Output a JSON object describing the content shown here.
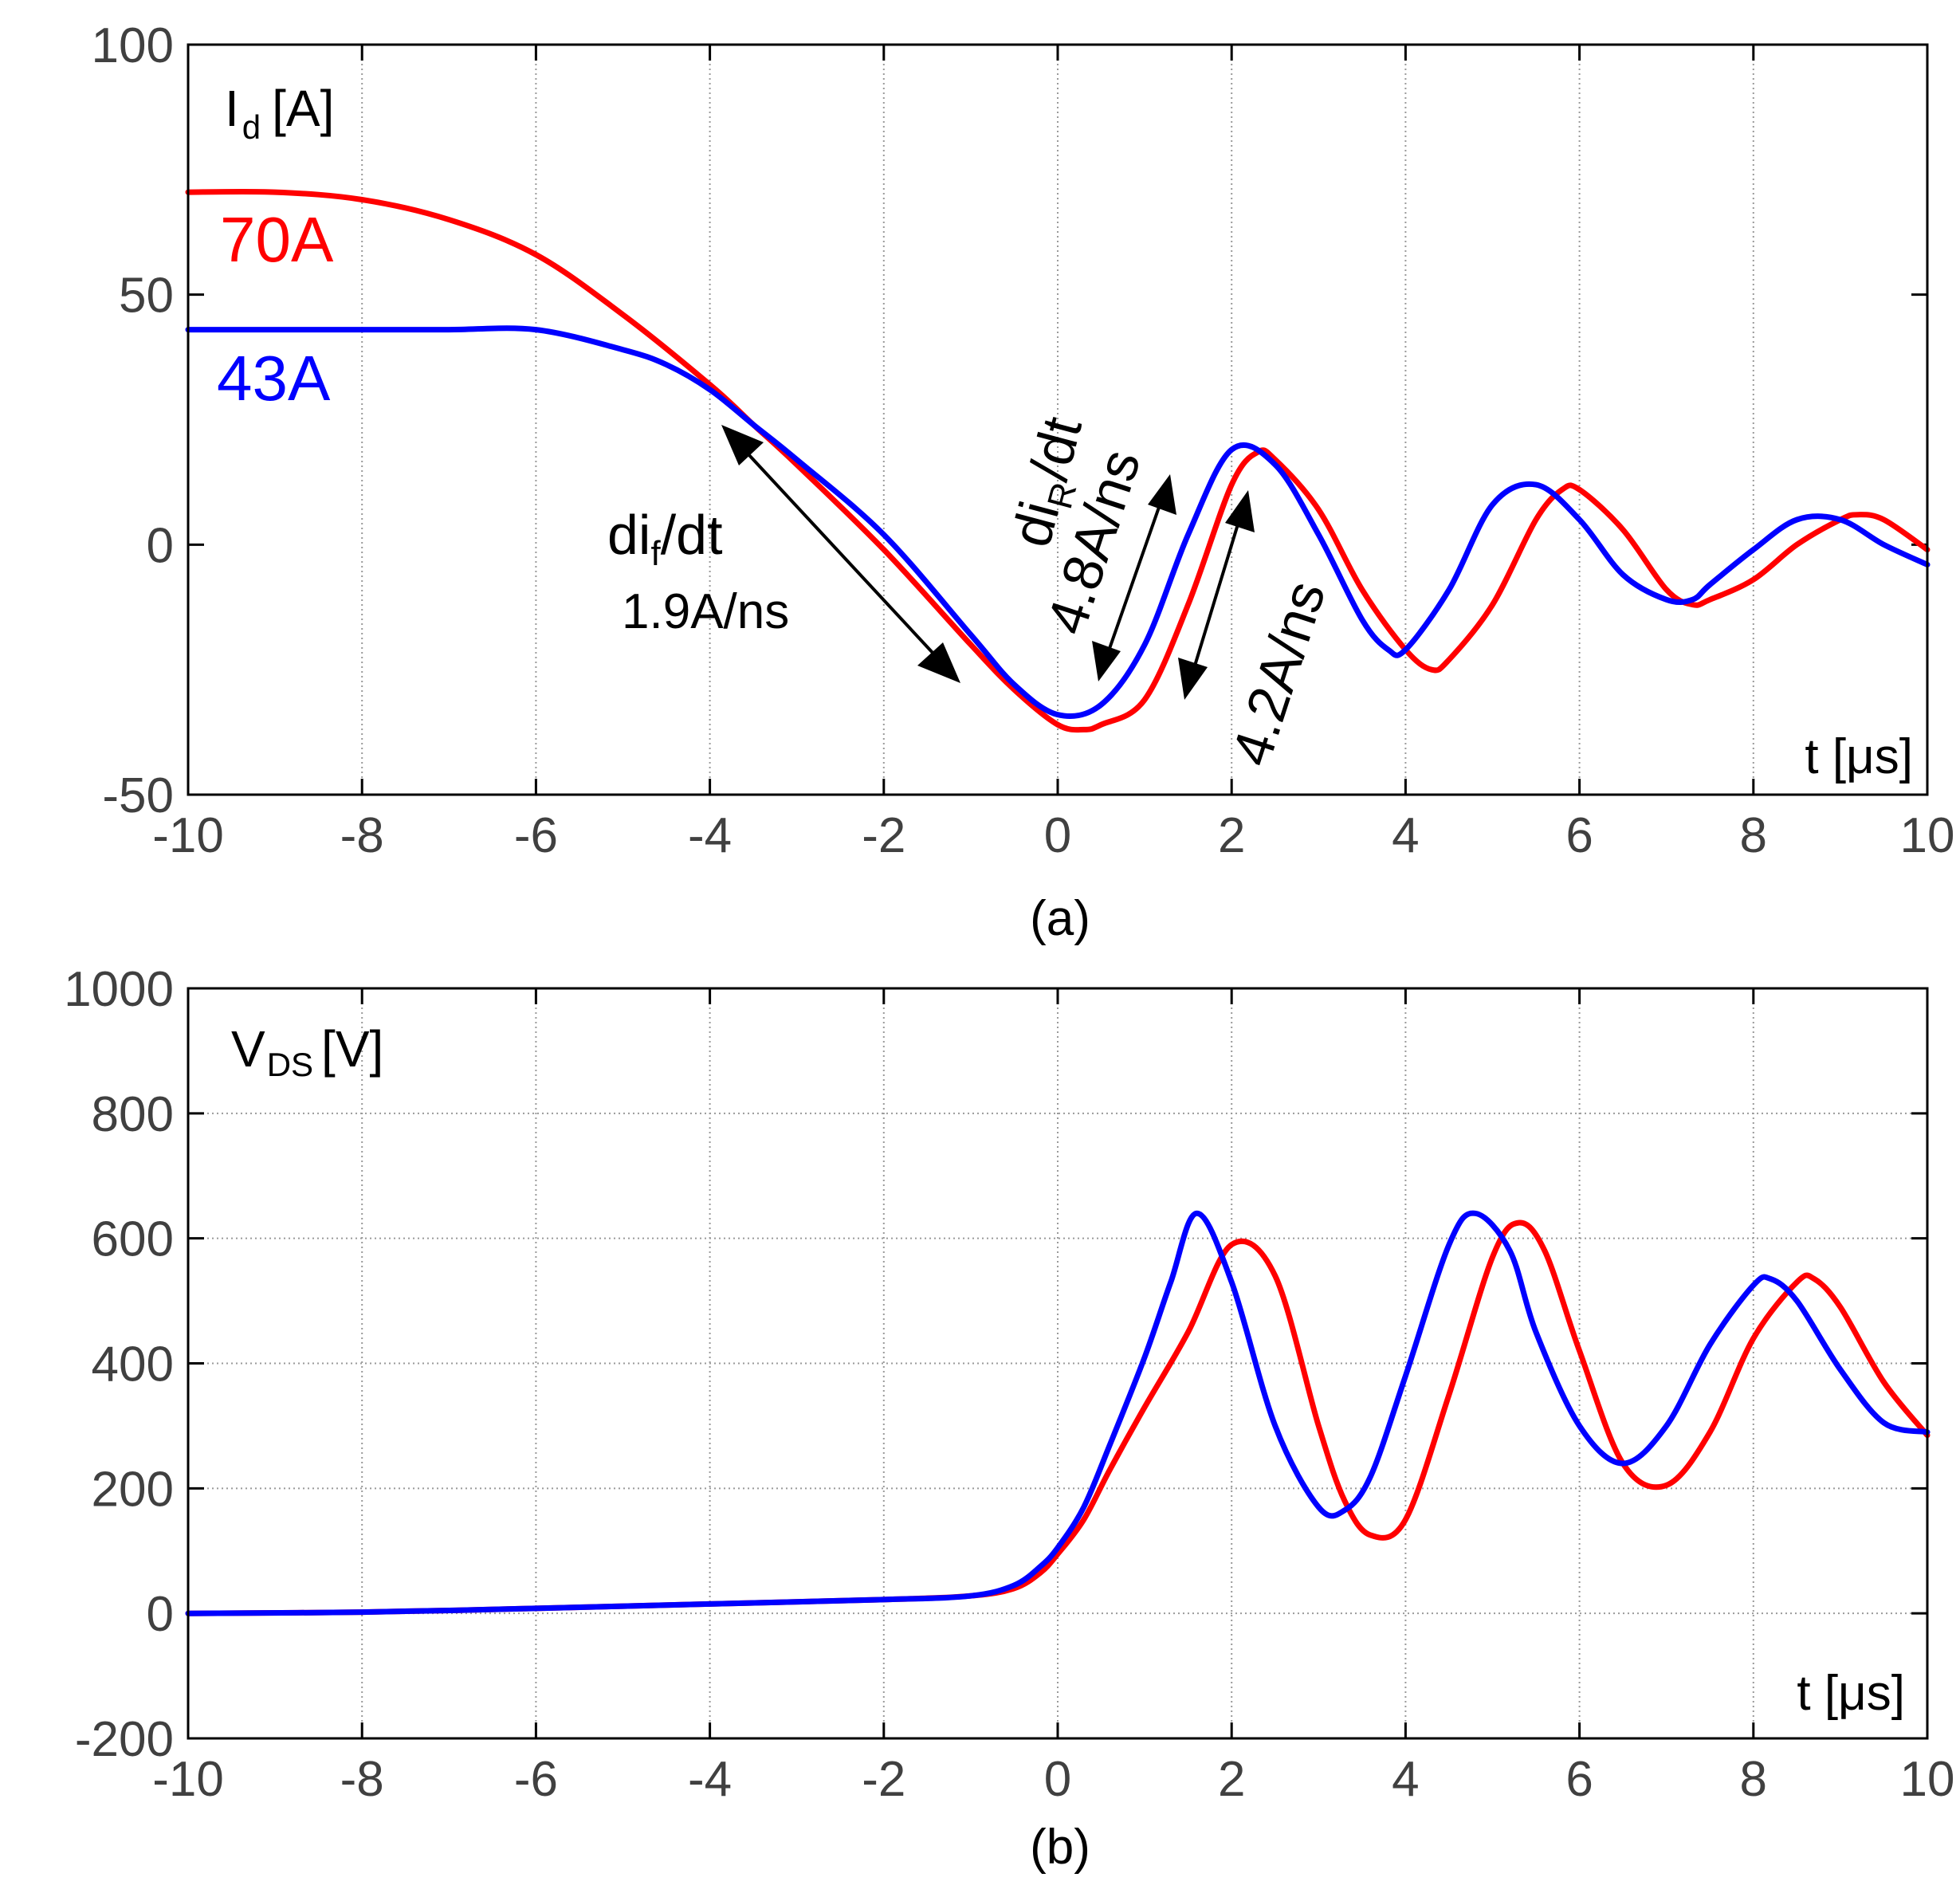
{
  "chart_data": [
    {
      "id": "a",
      "type": "line",
      "sublabel": "(a)",
      "ylabel": {
        "main": "I",
        "sub": "d",
        "unit": "[A]"
      },
      "xlabel": "t [μs]",
      "xlim": [
        -10,
        10
      ],
      "ylim": [
        -50,
        100
      ],
      "xticks": [
        -10,
        -8,
        -6,
        -4,
        -2,
        0,
        2,
        4,
        6,
        8,
        10
      ],
      "yticks": [
        -50,
        0,
        50,
        100
      ],
      "grid": "vertical-dotted",
      "colors": {
        "red": "#ff0000",
        "blue": "#0000ff"
      },
      "series": [
        {
          "name": "70A",
          "label": "70A",
          "color": "#ff0000",
          "x": [
            -10,
            -9,
            -8,
            -7,
            -6,
            -5,
            -4,
            -3.5,
            -3,
            -2,
            -1,
            -0.5,
            0,
            0.3,
            0.5,
            1,
            1.5,
            2,
            2.3,
            2.5,
            3,
            3.5,
            4,
            4.3,
            4.5,
            5,
            5.5,
            5.8,
            6,
            6.5,
            7,
            7.3,
            7.5,
            8,
            8.5,
            9,
            9.2,
            9.5,
            10
          ],
          "values": [
            70.5,
            70.5,
            69,
            65,
            58,
            46,
            32,
            24,
            16,
            -1,
            -20,
            -29,
            -36,
            -37,
            -36,
            -31,
            -12,
            12,
            18.5,
            17,
            7,
            -9,
            -21,
            -25,
            -23,
            -12,
            5,
            11,
            11,
            3,
            -9,
            -12,
            -11,
            -7,
            0,
            5,
            6,
            5,
            -1
          ]
        },
        {
          "name": "43A",
          "label": "43A",
          "color": "#0000ff",
          "x": [
            -10,
            -9,
            -8,
            -7,
            -6,
            -5,
            -4.5,
            -4,
            -3.5,
            -3,
            -2,
            -1,
            -0.5,
            0,
            0.5,
            1,
            1.5,
            2,
            2.5,
            3,
            3.5,
            3.8,
            4,
            4.5,
            5,
            5.5,
            6,
            6.5,
            7,
            7.3,
            7.5,
            8,
            8.5,
            9,
            9.5,
            10
          ],
          "values": [
            43,
            43,
            43,
            43,
            43,
            39,
            36,
            31,
            24,
            17,
            2,
            -18,
            -28,
            -34,
            -32,
            -20,
            2,
            19,
            16,
            2,
            -15,
            -21,
            -21,
            -9,
            8,
            12,
            5,
            -6,
            -11,
            -11,
            -8,
            -1,
            5,
            5,
            0,
            -4
          ]
        }
      ],
      "annotations": [
        {
          "id": "dif",
          "text_main": "di",
          "text_sub": "f",
          "text_tail": "/dt",
          "value": "1.9A/ns"
        },
        {
          "id": "dir",
          "text_main": "di",
          "text_sub": "R",
          "text_tail": "/dt"
        },
        {
          "id": "dir_blue",
          "value": "4.8A/ns"
        },
        {
          "id": "dir_red",
          "value": "4.2A/ns"
        }
      ]
    },
    {
      "id": "b",
      "type": "line",
      "sublabel": "(b)",
      "ylabel": {
        "main": "V",
        "sub": "DS",
        "unit": "[V]"
      },
      "xlabel": "t [μs]",
      "xlim": [
        -10,
        10
      ],
      "ylim": [
        -200,
        1000
      ],
      "xticks": [
        -10,
        -8,
        -6,
        -4,
        -2,
        0,
        2,
        4,
        6,
        8,
        10
      ],
      "yticks": [
        -200,
        0,
        200,
        400,
        600,
        800,
        1000
      ],
      "grid": "dotted",
      "colors": {
        "red": "#ff0000",
        "blue": "#0000ff"
      },
      "series": [
        {
          "name": "70A",
          "color": "#ff0000",
          "x": [
            -10,
            -8,
            -6,
            -4,
            -2,
            -1,
            -0.5,
            -0.2,
            0,
            0.3,
            0.6,
            1,
            1.5,
            2,
            2.5,
            3,
            3.3,
            3.6,
            4,
            4.5,
            5,
            5.3,
            5.6,
            6,
            6.5,
            7,
            7.5,
            8,
            8.5,
            8.7,
            9,
            9.5,
            10
          ],
          "values": [
            0,
            2,
            8,
            15,
            22,
            28,
            40,
            65,
            95,
            150,
            230,
            330,
            450,
            590,
            540,
            300,
            180,
            125,
            150,
            350,
            570,
            625,
            580,
            420,
            240,
            205,
            290,
            440,
            530,
            535,
            490,
            370,
            285
          ]
        },
        {
          "name": "43A",
          "color": "#0000ff",
          "x": [
            -10,
            -8,
            -6,
            -4,
            -2,
            -1,
            -0.5,
            -0.2,
            0,
            0.3,
            0.6,
            1,
            1.3,
            1.6,
            2,
            2.5,
            3,
            3.3,
            3.6,
            4,
            4.5,
            4.8,
            5.2,
            5.5,
            6,
            6.5,
            7,
            7.5,
            8,
            8.2,
            8.5,
            9,
            9.5,
            10
          ],
          "values": [
            0,
            2,
            8,
            15,
            22,
            28,
            45,
            75,
            105,
            170,
            270,
            410,
            530,
            640,
            530,
            300,
            170,
            165,
            220,
            380,
            590,
            640,
            580,
            450,
            300,
            240,
            300,
            430,
            525,
            535,
            500,
            390,
            305,
            290
          ]
        }
      ]
    }
  ]
}
